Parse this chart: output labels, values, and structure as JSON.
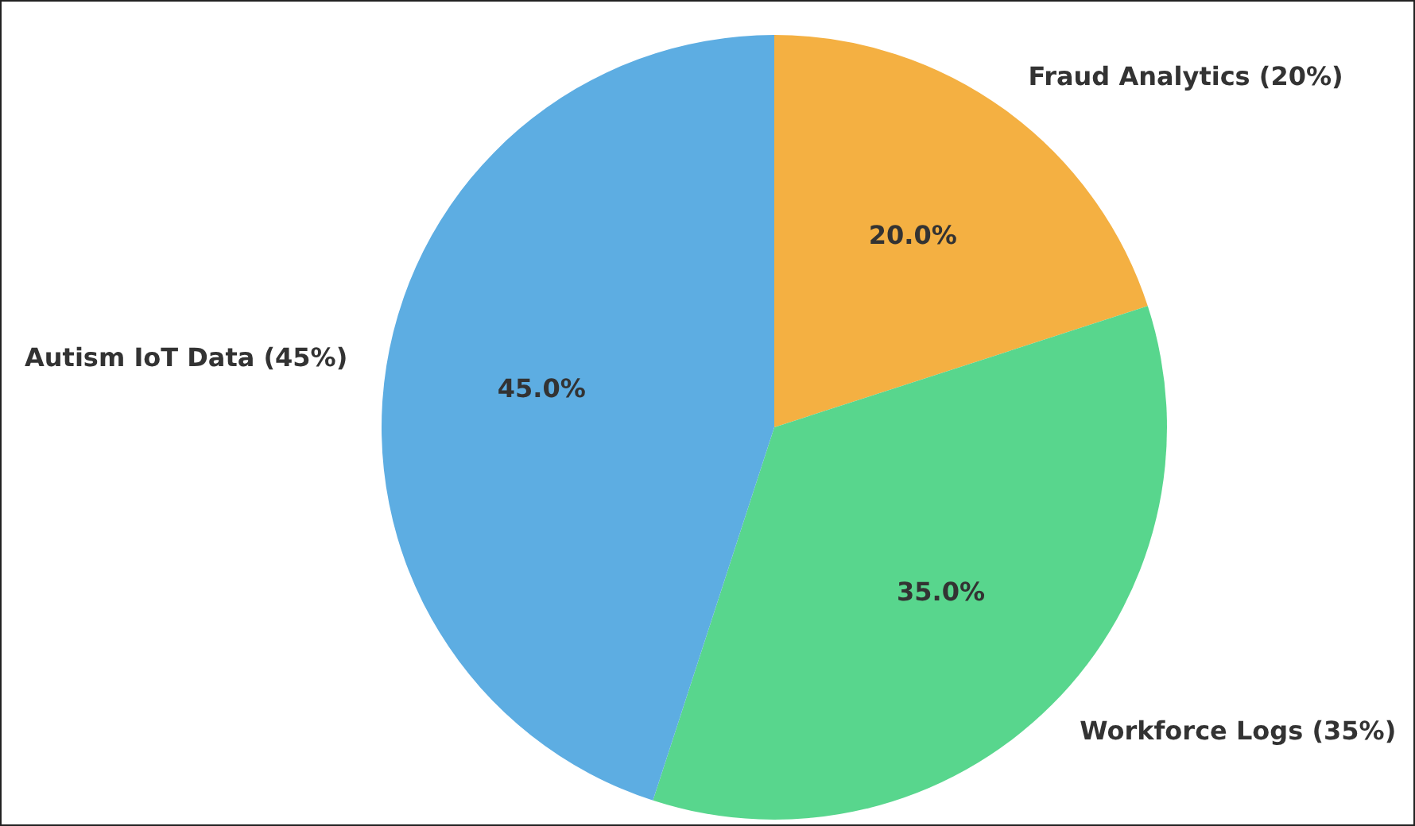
{
  "chart_data": {
    "type": "pie",
    "categories": [
      "Fraud Analytics (20%)",
      "Workforce Logs (35%)",
      "Autism IoT Data (45%)"
    ],
    "values": [
      20,
      35,
      45
    ],
    "colors": [
      "#f4b042",
      "#58d68d",
      "#5dade2"
    ],
    "value_labels": [
      "20.0%",
      "35.0%",
      "45.0%"
    ],
    "legend": false
  }
}
